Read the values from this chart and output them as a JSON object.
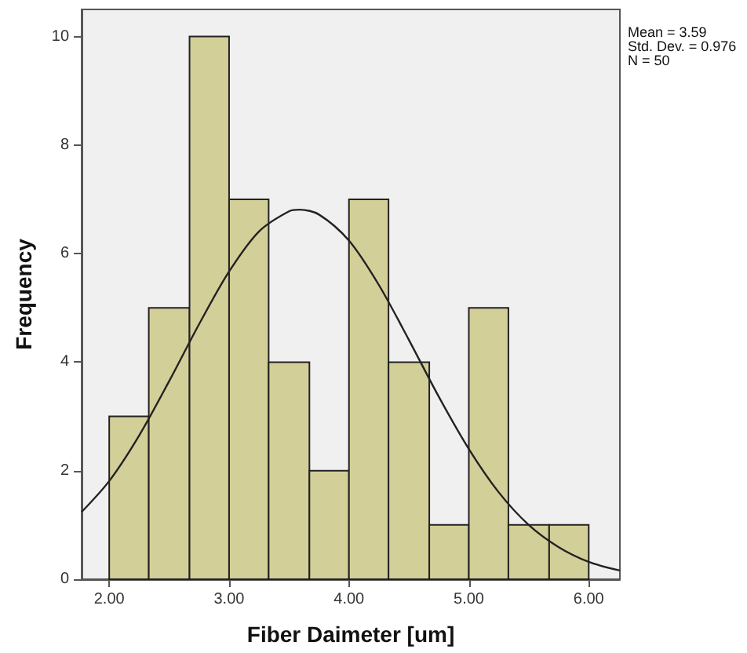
{
  "chart_data": {
    "type": "histogram",
    "xlabel": "Fiber Daimeter [um]",
    "ylabel": "Frequency",
    "bins": [
      2,
      2.33,
      2.67,
      3,
      3.33,
      3.67,
      4,
      4.33,
      4.67,
      5,
      5.33,
      5.67,
      6
    ],
    "values": [
      3,
      5,
      10,
      7,
      4,
      2,
      7,
      4,
      1,
      5,
      1,
      1
    ],
    "color": "#d3cf98",
    "series": [
      {
        "type": "line",
        "color": "#222222",
        "x": [
          1.77,
          2,
          2.25,
          2.5,
          2.75,
          3,
          3.25,
          3.5,
          3.59,
          3.75,
          4,
          4.25,
          4.5,
          4.75,
          5,
          5.25,
          5.5,
          5.75,
          6,
          6.26
        ],
        "values": [
          1.24,
          1.81,
          2.65,
          3.65,
          4.7,
          5.67,
          6.41,
          6.78,
          6.81,
          6.72,
          6.24,
          5.42,
          4.41,
          3.36,
          2.4,
          1.6,
          1.0,
          0.59,
          0.32,
          0.16
        ]
      }
    ],
    "xlim": [
      1.77,
      6.26
    ],
    "xticks": [
      {
        "value": 2,
        "label": "2.00"
      },
      {
        "value": 3,
        "label": "3.00"
      },
      {
        "value": 4,
        "label": "4.00"
      },
      {
        "value": 5,
        "label": "5.00"
      },
      {
        "value": 6,
        "label": "6.00"
      }
    ],
    "ylim": [
      0,
      10.5
    ],
    "yticks": [
      0,
      2,
      4,
      6,
      8,
      10
    ],
    "grid": false,
    "marker": "none",
    "line_style": "solid",
    "annotations": [
      "Mean = 3.59",
      "Std. Dev. = 0.976",
      "N = 50"
    ]
  }
}
